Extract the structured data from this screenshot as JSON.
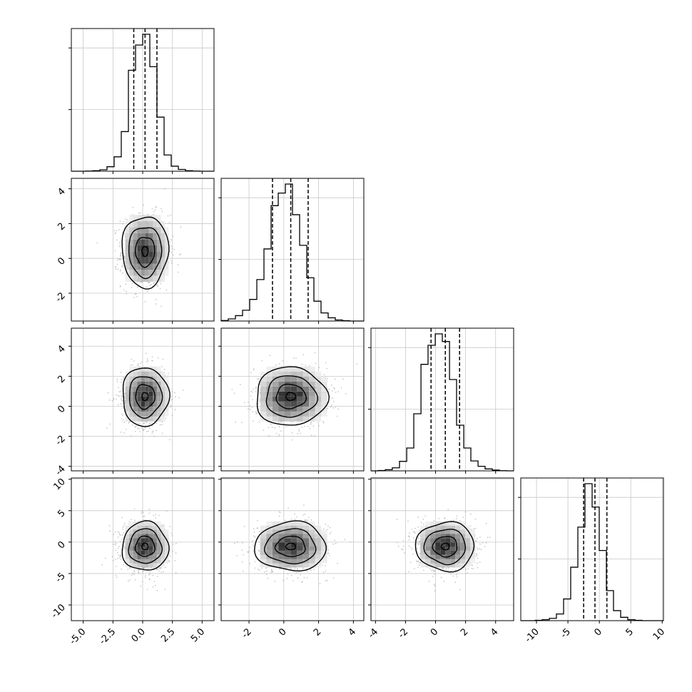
{
  "chart_data": {
    "type": "corner",
    "title": "",
    "variables": [
      {
        "xlim": [
          -6,
          6
        ],
        "ticks": [
          "-5.0",
          "-2.5",
          "0.0",
          "2.5",
          "5.0"
        ],
        "tick_values": [
          -5,
          -2.5,
          0,
          2.5,
          5
        ],
        "quantiles": [
          -0.75,
          0.2,
          1.2
        ],
        "mean": 0.2,
        "sd": 0.95
      },
      {
        "xlim": [
          -3.6,
          4.6
        ],
        "ticks": [
          "-2",
          "0",
          "2",
          "4"
        ],
        "tick_values": [
          -2,
          0,
          2,
          4
        ],
        "quantiles": [
          -0.65,
          0.4,
          1.4
        ],
        "mean": 0.4,
        "sd": 1.0
      },
      {
        "xlim": [
          -4.3,
          5.2
        ],
        "ticks": [
          "-4",
          "-2",
          "0",
          "2",
          "4"
        ],
        "tick_values": [
          -4,
          -2,
          0,
          2,
          4
        ],
        "quantiles": [
          -0.3,
          0.65,
          1.6
        ],
        "mean": 0.65,
        "sd": 0.95
      },
      {
        "xlim": [
          -12.5,
          10.2
        ],
        "ticks": [
          "-10",
          "-5",
          "0",
          "5",
          "10"
        ],
        "tick_values": [
          -10,
          -5,
          0,
          5,
          10
        ],
        "quantiles": [
          -2.5,
          -0.7,
          1.2
        ],
        "mean": -0.7,
        "sd": 1.9
      }
    ],
    "histograms": [
      {
        "bins": [
          -6,
          -5.4,
          -4.8,
          -4.2,
          -3.6,
          -3,
          -2.4,
          -1.8,
          -1.2,
          -0.6,
          0,
          0.6,
          1.2,
          1.8,
          2.4,
          3,
          3.6,
          4.2,
          4.8,
          5.4,
          6
        ],
        "counts": [
          0,
          0,
          1,
          3,
          8,
          25,
          80,
          220,
          560,
          700,
          760,
          580,
          300,
          90,
          28,
          10,
          3,
          1,
          0,
          0
        ]
      },
      {
        "bins": [
          -3.6,
          -3.19,
          -2.78,
          -2.37,
          -1.96,
          -1.55,
          -1.14,
          -0.73,
          -0.32,
          0.09,
          0.5,
          0.91,
          1.32,
          1.73,
          2.14,
          2.55,
          2.96,
          3.37,
          3.78,
          4.19,
          4.6
        ],
        "counts": [
          3,
          12,
          30,
          60,
          120,
          230,
          400,
          640,
          710,
          760,
          590,
          420,
          240,
          110,
          45,
          18,
          6,
          2,
          0,
          0
        ]
      },
      {
        "bins": [
          -4.3,
          -3.82,
          -3.35,
          -2.88,
          -2.4,
          -1.92,
          -1.45,
          -0.97,
          -0.5,
          -0.02,
          0.45,
          0.93,
          1.4,
          1.88,
          2.35,
          2.83,
          3.3,
          3.78,
          4.25,
          4.73,
          5.2
        ],
        "counts": [
          0,
          2,
          6,
          16,
          50,
          120,
          300,
          560,
          660,
          720,
          680,
          480,
          240,
          120,
          52,
          24,
          10,
          4,
          1,
          0
        ]
      },
      {
        "bins": [
          -12.5,
          -11.37,
          -10.23,
          -9.1,
          -7.96,
          -6.83,
          -5.69,
          -4.56,
          -3.42,
          -2.29,
          -1.15,
          -0.02,
          1.12,
          2.25,
          3.39,
          4.52,
          5.66,
          6.79,
          7.93,
          9.06,
          10.2
        ],
        "counts": [
          0,
          0,
          2,
          6,
          14,
          40,
          130,
          320,
          560,
          820,
          680,
          420,
          180,
          60,
          20,
          6,
          2,
          0,
          0,
          0
        ]
      }
    ],
    "pairs": [
      {
        "x_var": 0,
        "y_var": 1,
        "corr": 0.0
      },
      {
        "x_var": 0,
        "y_var": 2,
        "corr": 0.0
      },
      {
        "x_var": 1,
        "y_var": 2,
        "corr": 0.0
      },
      {
        "x_var": 0,
        "y_var": 3,
        "corr": 0.0
      },
      {
        "x_var": 1,
        "y_var": 3,
        "corr": 0.0
      },
      {
        "x_var": 2,
        "y_var": 3,
        "corr": 0.0
      }
    ],
    "colors": {
      "line": "#000000",
      "scatter": "#9e9e9e",
      "grid": "#c8c8c8"
    },
    "grid": true
  }
}
